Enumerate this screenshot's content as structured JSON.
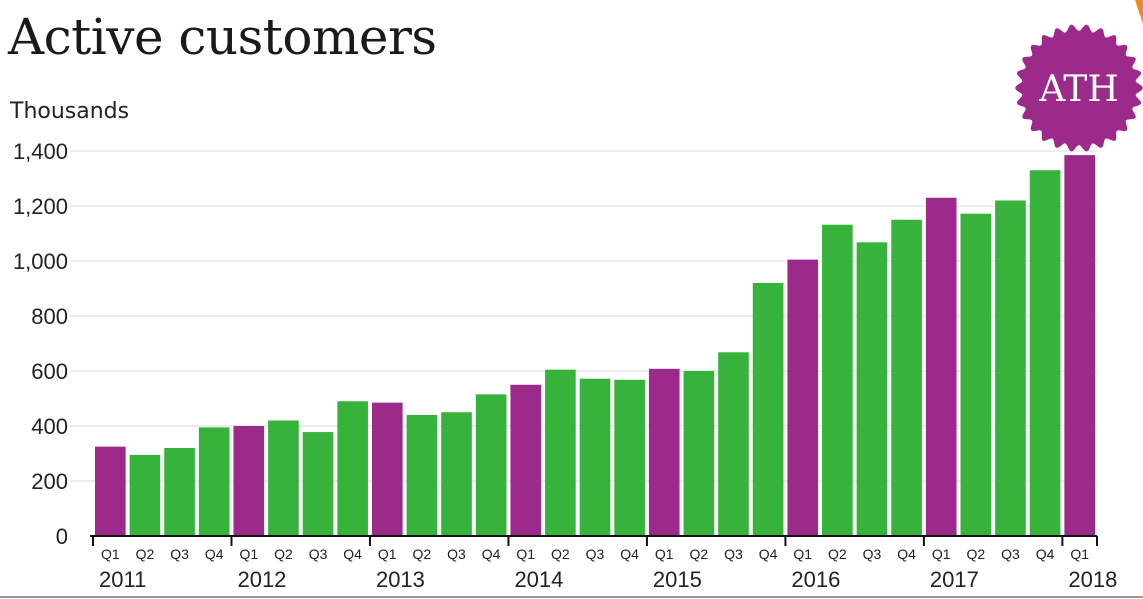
{
  "chart_data": {
    "type": "bar",
    "title": "Active customers",
    "ylabel": "Thousands",
    "ylim": [
      0,
      1400
    ],
    "yticks": [
      0,
      200,
      400,
      600,
      800,
      1000,
      1200,
      1400
    ],
    "ytick_labels": [
      "0",
      "200",
      "400",
      "600",
      "800",
      "1,000",
      "1,200",
      "1,400"
    ],
    "grid": true,
    "quarters": [
      "Q1",
      "Q2",
      "Q3",
      "Q4",
      "Q1",
      "Q2",
      "Q3",
      "Q4",
      "Q1",
      "Q2",
      "Q3",
      "Q4",
      "Q1",
      "Q2",
      "Q3",
      "Q4",
      "Q1",
      "Q2",
      "Q3",
      "Q4",
      "Q1",
      "Q2",
      "Q3",
      "Q4",
      "Q1",
      "Q2",
      "Q3",
      "Q4",
      "Q1"
    ],
    "years": [
      "2011",
      "2012",
      "2013",
      "2014",
      "2015",
      "2016",
      "2017",
      "2018"
    ],
    "values": [
      325,
      295,
      320,
      395,
      400,
      420,
      378,
      490,
      485,
      440,
      450,
      515,
      550,
      605,
      572,
      568,
      608,
      600,
      668,
      920,
      1005,
      1132,
      1068,
      1150,
      1230,
      1172,
      1220,
      1330,
      1385
    ],
    "colors": {
      "q1": "#9b2a8b",
      "other": "#37b23b",
      "grid": "#d9d9d9",
      "axis": "#111111"
    }
  },
  "badge": {
    "label": "ATH",
    "color": "#9b2a8b"
  },
  "accent": {
    "color": "#ef8a1f"
  }
}
